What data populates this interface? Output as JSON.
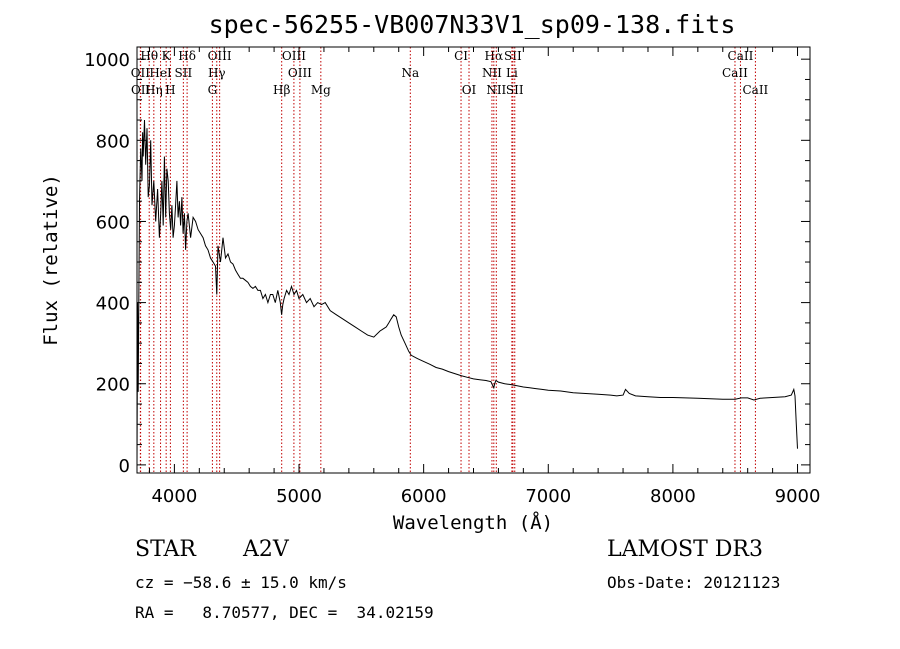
{
  "chart_data": {
    "type": "line",
    "title": "spec-56255-VB007N33V1_sp09-138.fits",
    "xlabel": "Wavelength (Å)",
    "ylabel": "Flux (relative)",
    "xlim": [
      3700,
      9100
    ],
    "ylim": [
      -20,
      1030
    ],
    "xticks": [
      4000,
      5000,
      6000,
      7000,
      8000,
      9000
    ],
    "yticks": [
      0,
      200,
      400,
      600,
      800,
      1000
    ],
    "x_tick_labels": [
      "4000",
      "5000",
      "6000",
      "7000",
      "8000",
      "9000"
    ],
    "y_tick_labels": [
      "0",
      "200",
      "400",
      "600",
      "800",
      "1000"
    ],
    "series": [
      {
        "name": "flux",
        "x": [
          3700,
          3705,
          3710,
          3720,
          3730,
          3740,
          3745,
          3750,
          3760,
          3770,
          3780,
          3790,
          3800,
          3810,
          3820,
          3835,
          3850,
          3865,
          3880,
          3890,
          3900,
          3910,
          3920,
          3930,
          3940,
          3950,
          3960,
          3970,
          3980,
          3990,
          4000,
          4010,
          4020,
          4030,
          4040,
          4050,
          4060,
          4070,
          4080,
          4090,
          4100,
          4110,
          4130,
          4150,
          4170,
          4190,
          4210,
          4230,
          4250,
          4270,
          4290,
          4310,
          4330,
          4340,
          4350,
          4370,
          4390,
          4410,
          4430,
          4450,
          4470,
          4490,
          4510,
          4530,
          4550,
          4570,
          4590,
          4610,
          4630,
          4650,
          4670,
          4690,
          4710,
          4730,
          4750,
          4770,
          4790,
          4810,
          4830,
          4850,
          4860,
          4870,
          4880,
          4900,
          4920,
          4940,
          4960,
          4980,
          5000,
          5030,
          5060,
          5090,
          5120,
          5150,
          5180,
          5210,
          5250,
          5300,
          5350,
          5400,
          5450,
          5500,
          5550,
          5600,
          5650,
          5700,
          5720,
          5740,
          5760,
          5780,
          5800,
          5820,
          5850,
          5880,
          5900,
          5950,
          6000,
          6050,
          6100,
          6150,
          6200,
          6250,
          6300,
          6350,
          6400,
          6450,
          6500,
          6540,
          6560,
          6563,
          6570,
          6580,
          6600,
          6650,
          6700,
          6750,
          6800,
          6850,
          6900,
          6950,
          7000,
          7100,
          7200,
          7300,
          7400,
          7500,
          7550,
          7600,
          7620,
          7650,
          7700,
          7800,
          7900,
          8000,
          8100,
          8200,
          8300,
          8400,
          8500,
          8550,
          8600,
          8650,
          8700,
          8800,
          8900,
          8950,
          8970,
          8980,
          8990,
          9000
        ],
        "values": [
          0,
          400,
          180,
          650,
          780,
          700,
          820,
          760,
          850,
          740,
          830,
          660,
          690,
          800,
          640,
          700,
          600,
          680,
          560,
          620,
          700,
          590,
          760,
          610,
          730,
          700,
          620,
          580,
          640,
          560,
          590,
          640,
          700,
          610,
          650,
          590,
          660,
          570,
          620,
          530,
          600,
          620,
          560,
          610,
          600,
          580,
          570,
          560,
          540,
          530,
          510,
          500,
          490,
          420,
          540,
          500,
          560,
          510,
          520,
          500,
          495,
          480,
          470,
          460,
          460,
          455,
          450,
          440,
          435,
          440,
          430,
          430,
          410,
          420,
          400,
          420,
          420,
          400,
          430,
          400,
          370,
          395,
          410,
          430,
          420,
          440,
          420,
          430,
          410,
          420,
          400,
          410,
          390,
          400,
          395,
          400,
          380,
          370,
          360,
          350,
          340,
          330,
          320,
          315,
          330,
          340,
          350,
          360,
          370,
          365,
          340,
          320,
          300,
          280,
          270,
          262,
          255,
          248,
          240,
          236,
          230,
          225,
          220,
          216,
          212,
          210,
          208,
          205,
          192,
          190,
          200,
          208,
          204,
          200,
          198,
          195,
          192,
          190,
          188,
          186,
          184,
          182,
          178,
          176,
          174,
          172,
          170,
          172,
          186,
          176,
          170,
          168,
          166,
          166,
          165,
          164,
          163,
          162,
          162,
          165,
          165,
          160,
          164,
          166,
          168,
          172,
          186,
          170,
          100,
          40
        ]
      }
    ],
    "spectral_lines": [
      {
        "label": "Hθ",
        "wavelength": 3798,
        "row": 0
      },
      {
        "label": "K",
        "wavelength": 3934,
        "row": 0
      },
      {
        "label": "Hδ",
        "wavelength": 4102,
        "row": 0
      },
      {
        "label": "OIII",
        "wavelength": 4363,
        "row": 0
      },
      {
        "label": "OIII",
        "wavelength": 4959,
        "row": 0
      },
      {
        "label": "CI",
        "wavelength": 6300,
        "row": 0
      },
      {
        "label": "Hα",
        "wavelength": 6563,
        "row": 0
      },
      {
        "label": "SII",
        "wavelength": 6716,
        "row": 0
      },
      {
        "label": "CaII",
        "wavelength": 8542,
        "row": 0
      },
      {
        "label": "OII",
        "wavelength": 3727,
        "row": 1
      },
      {
        "label": "HeI",
        "wavelength": 3889,
        "row": 1
      },
      {
        "label": "SII",
        "wavelength": 4072,
        "row": 1
      },
      {
        "label": "Hγ",
        "wavelength": 4340,
        "row": 1
      },
      {
        "label": "OIII",
        "wavelength": 5007,
        "row": 1
      },
      {
        "label": "Na",
        "wavelength": 5893,
        "row": 1
      },
      {
        "label": "NII",
        "wavelength": 6548,
        "row": 1
      },
      {
        "label": "Li",
        "wavelength": 6708,
        "row": 1
      },
      {
        "label": "CaII",
        "wavelength": 8498,
        "row": 1
      },
      {
        "label": "OII",
        "wavelength": 3729,
        "row": 2
      },
      {
        "label": "Hη",
        "wavelength": 3835,
        "row": 2
      },
      {
        "label": "H",
        "wavelength": 3968,
        "row": 2
      },
      {
        "label": "G",
        "wavelength": 4305,
        "row": 2
      },
      {
        "label": "Hβ",
        "wavelength": 4861,
        "row": 2
      },
      {
        "label": "Mg",
        "wavelength": 5175,
        "row": 2
      },
      {
        "label": "OI",
        "wavelength": 6364,
        "row": 2
      },
      {
        "label": "NII",
        "wavelength": 6583,
        "row": 2
      },
      {
        "label": "SII",
        "wavelength": 6731,
        "row": 2
      },
      {
        "label": "CaII",
        "wavelength": 8662,
        "row": 2
      }
    ]
  },
  "info": {
    "object_class": "STAR",
    "subclass": "A2V",
    "survey": "LAMOST DR3",
    "redshift": "cz = −58.6 ± 15.0 km/s",
    "obs_date": "Obs-Date: 20121123",
    "coords": "RA =   8.70577, DEC =  34.02159"
  }
}
